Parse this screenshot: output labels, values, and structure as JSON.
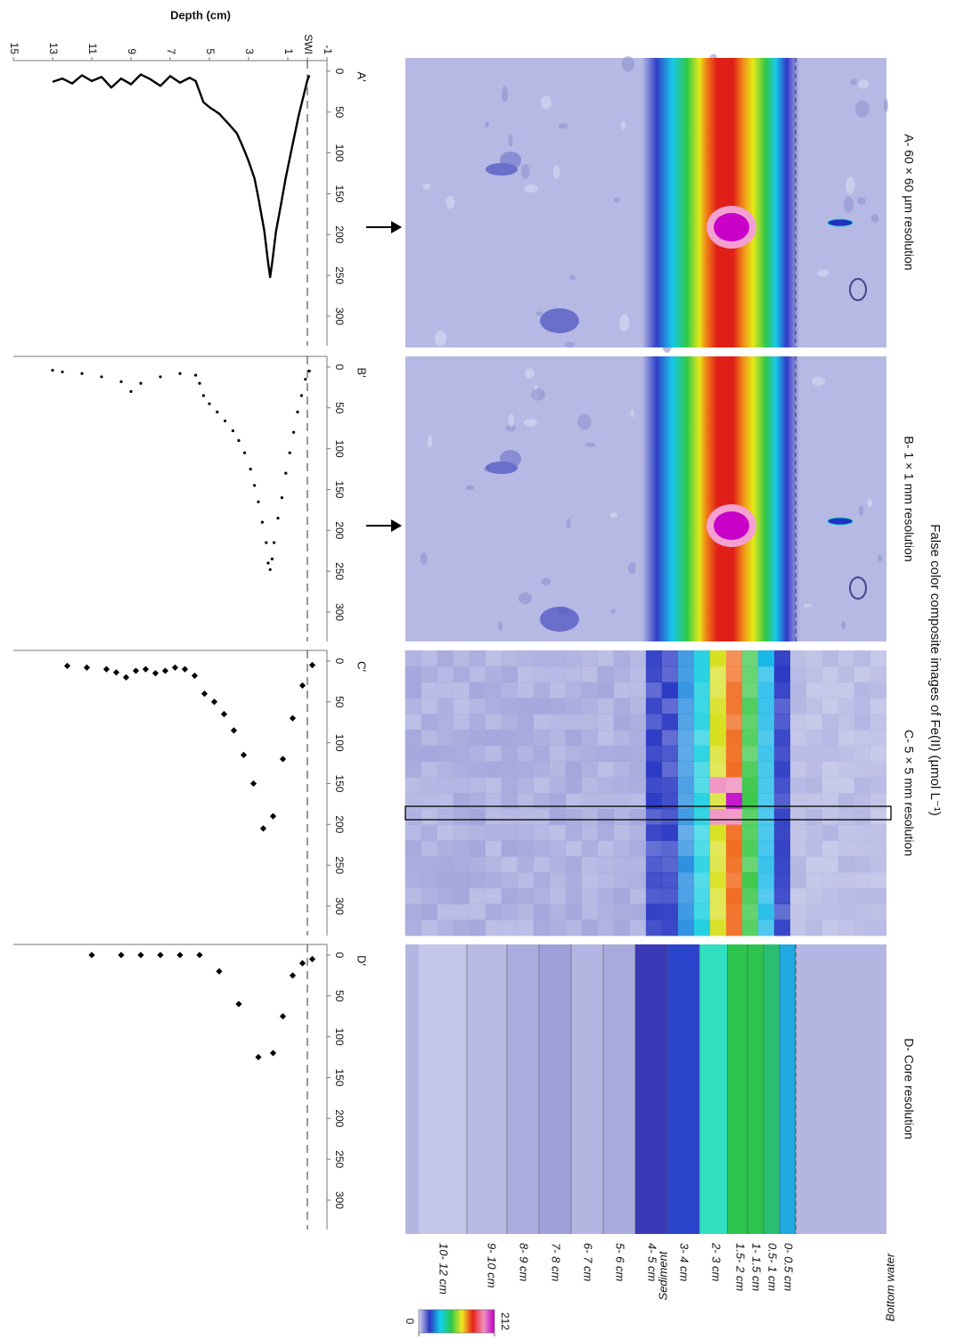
{
  "title": "False color composite images of Fe(II) (µmol L⁻¹)",
  "image_titles": [
    "A- 60 × 60 µm resolution",
    "B- 1 × 1 mm resolution",
    "C- 5 × 5 mm resolution",
    "D- Core resolution"
  ],
  "zone_labels": [
    "Bottom water",
    "Sediment"
  ],
  "colorbar": {
    "ticks": [
      0,
      212
    ],
    "colors": [
      "#d4d6f0",
      "#2a36c0",
      "#10d0f0",
      "#2cc848",
      "#f0e820",
      "#e82018",
      "#f090c0",
      "#c000c8"
    ]
  },
  "chart_data": [
    {
      "type": "line",
      "label": "A′",
      "color": "#000000",
      "ylabel": "Depth (cm)",
      "xlim": [
        -13,
        336
      ],
      "xticks": [
        0,
        50,
        100,
        150,
        200,
        250,
        300
      ],
      "ylim": [
        -1,
        15
      ],
      "yticks": [
        -1,
        {
          "value": 0,
          "label": "SWI"
        },
        1,
        3,
        5,
        7,
        9,
        11,
        13,
        15
      ],
      "swi_line": 0,
      "x": [
        5,
        11,
        55,
        95,
        130,
        170,
        196,
        235,
        252,
        235,
        195,
        155,
        131,
        110,
        92,
        76,
        65,
        52,
        44,
        38,
        25,
        12,
        8,
        14,
        6,
        18,
        10,
        4,
        16,
        9,
        20,
        7,
        12,
        5,
        15,
        9,
        13
      ],
      "values": [
        -0.1,
        0,
        0.45,
        0.8,
        1.1,
        1.4,
        1.6,
        1.8,
        1.9,
        2.0,
        2.2,
        2.5,
        2.7,
        3.0,
        3.3,
        3.6,
        4.0,
        4.5,
        5.0,
        5.3,
        5.5,
        5.7,
        6,
        6.5,
        7,
        7.5,
        8,
        8.5,
        9,
        9.5,
        10,
        10.5,
        11,
        11.5,
        12,
        12.5,
        13
      ]
    },
    {
      "type": "scatter",
      "marker": "dot",
      "label": "B′",
      "color": "#000000",
      "xlim": [
        -13,
        336
      ],
      "xticks": [
        0,
        50,
        100,
        150,
        200,
        250,
        300
      ],
      "ylim": [
        -1,
        15
      ],
      "swi_line": 0,
      "x": [
        5,
        15,
        35,
        55,
        80,
        105,
        130,
        160,
        185,
        215,
        235,
        248,
        240,
        215,
        190,
        165,
        145,
        125,
        105,
        90,
        78,
        66,
        55,
        45,
        35,
        20,
        10,
        8,
        12,
        20,
        30,
        18,
        12,
        8,
        6,
        4
      ],
      "values": [
        -0.1,
        0.1,
        0.3,
        0.5,
        0.7,
        0.9,
        1.1,
        1.3,
        1.5,
        1.7,
        1.8,
        1.9,
        2.0,
        2.1,
        2.3,
        2.5,
        2.7,
        2.9,
        3.2,
        3.5,
        3.8,
        4.2,
        4.6,
        5.0,
        5.3,
        5.5,
        5.7,
        6.5,
        7.5,
        8.5,
        9.0,
        9.5,
        10.5,
        11.5,
        12.5,
        13.0
      ]
    },
    {
      "type": "scatter",
      "marker": "diamond",
      "label": "C′",
      "color": "#000000",
      "xlim": [
        -13,
        336
      ],
      "xticks": [
        0,
        50,
        100,
        150,
        200,
        250,
        300
      ],
      "ylim": [
        -1,
        15
      ],
      "swi_line": 0,
      "x": [
        5,
        30,
        70,
        120,
        190,
        205,
        150,
        115,
        85,
        65,
        50,
        40,
        18,
        10,
        8,
        12,
        15,
        10,
        12,
        20,
        14,
        10,
        8,
        6
      ],
      "values": [
        -0.25,
        0.25,
        0.75,
        1.25,
        1.75,
        2.25,
        2.75,
        3.25,
        3.75,
        4.25,
        4.75,
        5.25,
        5.75,
        6.25,
        6.75,
        7.25,
        7.75,
        8.25,
        8.75,
        9.25,
        9.75,
        10.25,
        11.25,
        12.25
      ]
    },
    {
      "type": "scatter",
      "marker": "diamond",
      "label": "D′",
      "color": "#000000",
      "xlim": [
        -13,
        336
      ],
      "xticks": [
        0,
        50,
        100,
        150,
        200,
        250,
        300
      ],
      "ylim": [
        -1,
        15
      ],
      "swi_line": 0,
      "layers": [
        null,
        "0- 0.5 cm",
        "0.5- 1 cm",
        "1- 1.5 cm",
        "1.5- 2 cm",
        "2- 3 cm",
        "3- 4 cm",
        "4- 5 cm",
        "5- 6 cm",
        "6- 7 cm",
        "7- 8 cm",
        "8- 9 cm",
        "9- 10 cm",
        "10- 12 cm"
      ],
      "x": [
        5,
        10,
        25,
        75,
        120,
        125,
        60,
        20,
        0,
        0,
        0,
        0,
        0,
        0
      ],
      "values": [
        -0.25,
        0.25,
        0.75,
        1.25,
        1.75,
        2.5,
        3.5,
        4.5,
        5.5,
        6.5,
        7.5,
        8.5,
        9.5,
        11
      ]
    }
  ]
}
